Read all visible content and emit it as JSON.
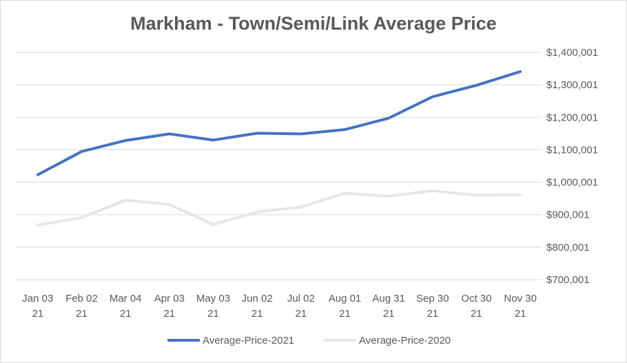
{
  "chart_data": {
    "type": "line",
    "title": "Markham - Town/Semi/Link Average Price",
    "xlabel": "",
    "ylabel": "",
    "categories": [
      [
        "Jan 03",
        "21"
      ],
      [
        "Feb 02",
        "21"
      ],
      [
        "Mar 04",
        "21"
      ],
      [
        "Apr 03",
        "21"
      ],
      [
        "May 03",
        "21"
      ],
      [
        "Jun 02",
        "21"
      ],
      [
        "Jul 02",
        "21"
      ],
      [
        "Aug 01",
        "21"
      ],
      [
        "Aug 31",
        "21"
      ],
      [
        "Sep 30",
        "21"
      ],
      [
        "Oct 30",
        "21"
      ],
      [
        "Nov 30",
        "21"
      ]
    ],
    "yticks": [
      "$700,001",
      "$800,001",
      "$900,001",
      "$1,000,001",
      "$1,100,001",
      "$1,200,001",
      "$1,300,001",
      "$1,400,001"
    ],
    "ylim": [
      700001,
      1400001
    ],
    "grid": true,
    "legend_position": "bottom",
    "series": [
      {
        "name": "Average-Price-2021",
        "color": "#4472C4",
        "values": [
          1023000,
          1094700,
          1128500,
          1148900,
          1129900,
          1151000,
          1149000,
          1162200,
          1197400,
          1263400,
          1298600,
          1340800
        ]
      },
      {
        "name": "Average-Price-2020",
        "color": "#E7E6E6",
        "values": [
          868400,
          890900,
          945000,
          931600,
          869800,
          908400,
          923900,
          966100,
          956900,
          973800,
          959800,
          961200
        ]
      }
    ]
  }
}
